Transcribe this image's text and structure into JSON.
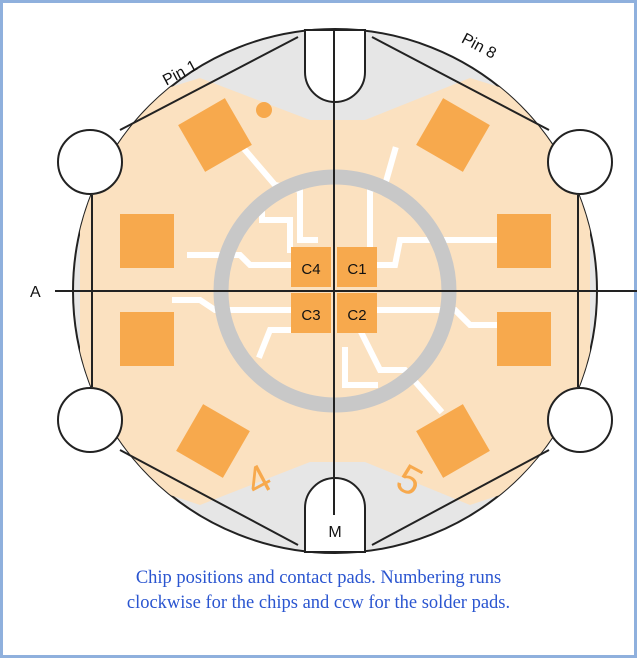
{
  "labels": {
    "pin_1": "Pin 1",
    "pin_8": "Pin 8",
    "axis_a": "A",
    "axis_m": "M",
    "pad_4": "4",
    "pad_5": "5"
  },
  "chips": [
    "C4",
    "C1",
    "C3",
    "C2"
  ],
  "caption": {
    "line1": "Chip positions and contact pads. Numbering runs",
    "line2": "clockwise for the chips and ccw for the solder pads."
  },
  "colors": {
    "frame": "#8fb0dd",
    "housing": "#e6e6e6",
    "copper": "#fbe1c0",
    "pad": "#f7a94d",
    "ring": "#c8c8c8",
    "caption": "#2a55d0"
  }
}
